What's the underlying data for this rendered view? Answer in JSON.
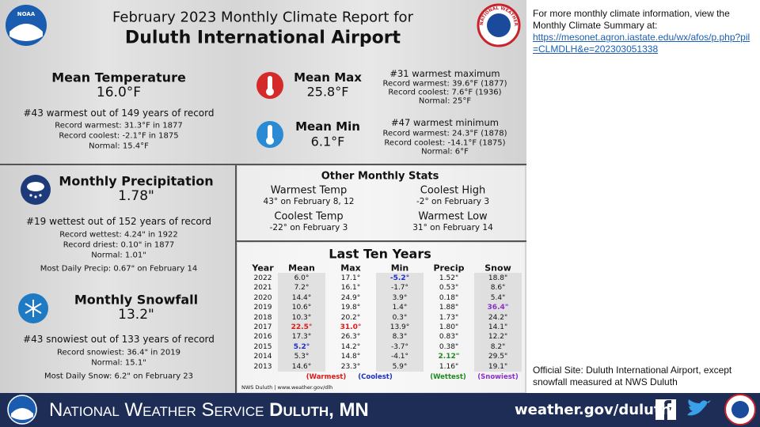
{
  "header": {
    "line1": "February 2023 Monthly Climate Report for",
    "line2": "Duluth International Airport"
  },
  "logos": {
    "noaa": "NOAA",
    "nws": "NATIONAL WEATHER SERVICE"
  },
  "mean_temperature": {
    "title": "Mean Temperature",
    "value": "16.0°F",
    "rank": "#43 warmest out of 149 years of record",
    "lines": [
      "Record warmest: 31.3°F in 1877",
      "Record coolest: -2.1°F in 1875",
      "Normal: 15.4°F"
    ]
  },
  "mean_max": {
    "title": "Mean Max",
    "value": "25.8°F",
    "rank": "#31 warmest maximum",
    "lines": [
      "Record warmest: 39.6°F (1877)",
      "Record coolest: 7.6°F (1936)",
      "Normal: 25°F"
    ]
  },
  "mean_min": {
    "title": "Mean Min",
    "value": "6.1°F",
    "rank": "#47 warmest minimum",
    "lines": [
      "Record warmest: 24.3°F (1878)",
      "Record coolest: -14.1°F (1875)",
      "Normal: 6°F"
    ]
  },
  "precipitation": {
    "title": "Monthly Precipitation",
    "value": "1.78\"",
    "rank": "#19 wettest out of 152 years of record",
    "lines": [
      "Record wettest: 4.24\" in 1922",
      "Record driest: 0.10\" in 1877",
      "Normal: 1.01\""
    ],
    "extreme": "Most Daily Precip: 0.67\" on February 14"
  },
  "snowfall": {
    "title": "Monthly Snowfall",
    "value": "13.2\"",
    "rank": "#43 snowiest out of 133 years of record",
    "lines": [
      "Record snowiest: 36.4\" in 2019",
      "Normal: 15.1\""
    ],
    "extreme": "Most Daily Snow: 6.2\" on February 23"
  },
  "other_stats": {
    "title": "Other Monthly Stats",
    "items": [
      {
        "label": "Warmest Temp",
        "value": "43° on February 8, 12"
      },
      {
        "label": "Coolest High",
        "value": "-2° on February 3"
      },
      {
        "label": "Coolest Temp",
        "value": "-22° on February 3"
      },
      {
        "label": "Warmest Low",
        "value": "31° on February 14"
      }
    ]
  },
  "last_ten_years": {
    "title": "Last Ten Years",
    "columns": [
      "Year",
      "Mean",
      "Max",
      "Min",
      "Precip",
      "Snow"
    ],
    "rows": [
      [
        "2022",
        "6.0°",
        "17.1°",
        "-5.2°",
        "1.52\"",
        "18.8\""
      ],
      [
        "2021",
        "7.2°",
        "16.1°",
        "-1.7°",
        "0.53\"",
        "8.6\""
      ],
      [
        "2020",
        "14.4°",
        "24.9°",
        "3.9°",
        "0.18\"",
        "5.4\""
      ],
      [
        "2019",
        "10.6°",
        "19.8°",
        "1.4°",
        "1.88\"",
        "36.4\""
      ],
      [
        "2018",
        "10.3°",
        "20.2°",
        "0.3°",
        "1.73\"",
        "24.2\""
      ],
      [
        "2017",
        "22.5°",
        "31.0°",
        "13.9°",
        "1.80\"",
        "14.1\""
      ],
      [
        "2016",
        "17.3°",
        "26.3°",
        "8.3°",
        "0.83\"",
        "12.2\""
      ],
      [
        "2015",
        "5.2°",
        "14.2°",
        "-3.7°",
        "0.38\"",
        "8.2\""
      ],
      [
        "2014",
        "5.3°",
        "14.8°",
        "-4.1°",
        "2.12\"",
        "29.5\""
      ],
      [
        "2013",
        "14.6°",
        "23.3°",
        "5.9°",
        "1.16\"",
        "19.1\""
      ]
    ],
    "legend": [
      {
        "label": "(Warmest)",
        "color": "#e01818"
      },
      {
        "label": "(Coolest)",
        "color": "#1a2fc8"
      },
      {
        "label": "(Wettest)",
        "color": "#1f8a1f"
      },
      {
        "label": "(Snowiest)",
        "color": "#8a2fc8"
      }
    ],
    "source": "NWS Duluth | www.weather.gov/dlh"
  },
  "sidebar": {
    "intro": "For more monthly climate information, view the Monthly Climate Summary at:",
    "link": "https://mesonet.agron.iastate.edu/wx/afos/p.php?pil=CLMDLH&e=202303051338",
    "official": "Official Site: Duluth International Airport, except snowfall measured at NWS Duluth"
  },
  "footer": {
    "agency": "National Weather Service",
    "office": "Duluth, MN",
    "website": "weather.gov/duluth"
  }
}
